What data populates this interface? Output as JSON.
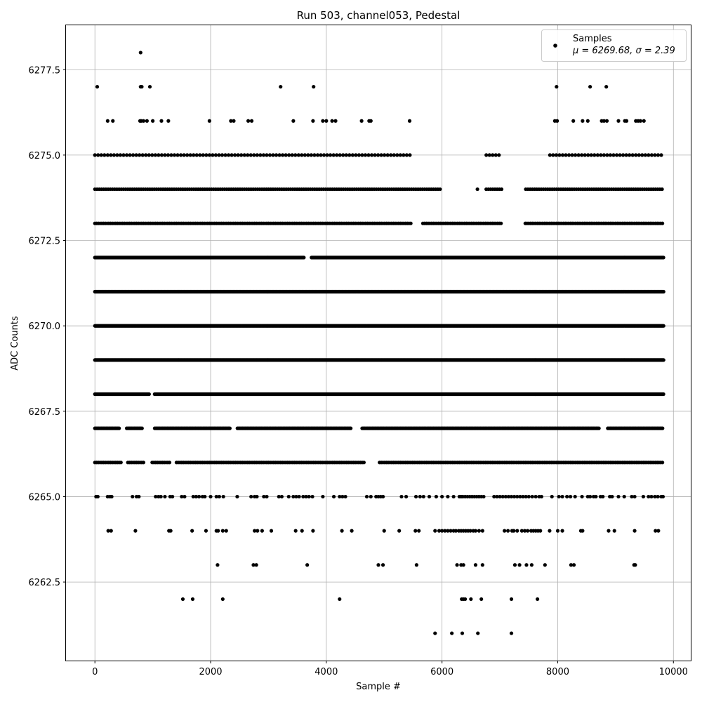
{
  "chart_data": {
    "type": "scatter",
    "title": "Run 503, channel053, Pedestal",
    "xlabel": "Sample #",
    "ylabel": "ADC Counts",
    "xlim": [
      -500,
      10300
    ],
    "ylim": [
      6260.2,
      6278.8
    ],
    "x_ticks": [
      0,
      2000,
      4000,
      6000,
      8000,
      10000
    ],
    "x_tick_labels": [
      "0",
      "2000",
      "4000",
      "6000",
      "8000",
      "10000"
    ],
    "y_ticks": [
      6262.5,
      6265.0,
      6267.5,
      6270.0,
      6272.5,
      6275.0,
      6277.5
    ],
    "y_tick_labels": [
      "6262.5",
      "6265.0",
      "6267.5",
      "6270.0",
      "6272.5",
      "6275.0",
      "6277.5"
    ],
    "grid": true,
    "legend": {
      "placement": "top-right",
      "entries": [
        "Samples",
        "μ = 6269.68, σ = 2.39"
      ]
    },
    "marker_color": "#000000",
    "series": [
      {
        "name": "Samples",
        "levels": [
          {
            "y": 6278,
            "x": [
              790
            ]
          },
          {
            "y": 6277,
            "x": [
              40,
              790,
              810,
              950,
              3210,
              3780,
              7980,
              8560,
              8840
            ]
          },
          {
            "y": 6276,
            "x": [
              220,
              310,
              780,
              800,
              840,
              900,
              1000,
              1150,
              1270,
              1980,
              2350,
              2400,
              2650,
              2710,
              3430,
              3770,
              3940,
              4000,
              4100,
              4160,
              4610,
              4740,
              4770,
              5440,
              7950,
              7990,
              8270,
              8430,
              8520,
              8760,
              8800,
              8850,
              9050,
              9160,
              9190,
              9350,
              9390,
              9430,
              9490
            ]
          },
          {
            "y": 6275,
            "lo": 0,
            "hi": 9830,
            "step": 55,
            "gaps": [
              [
                5480,
                6760
              ],
              [
                7000,
                7850
              ]
            ]
          },
          {
            "y": 6274,
            "lo": 0,
            "hi": 9830,
            "step": 38,
            "gaps": [
              [
                5980,
                6580
              ],
              [
                6620,
                6760
              ],
              [
                7060,
                7440
              ]
            ]
          },
          {
            "y": 6273,
            "lo": 0,
            "hi": 9830,
            "step": 30,
            "gaps": [
              [
                5480,
                5640
              ],
              [
                7050,
                7420
              ]
            ]
          },
          {
            "y": 6272,
            "lo": 0,
            "hi": 9830,
            "step": 12,
            "gaps": [
              [
                3620,
                3740
              ]
            ]
          },
          {
            "y": 6271,
            "lo": 0,
            "hi": 9830,
            "step": 10,
            "gaps": []
          },
          {
            "y": 6270,
            "lo": 0,
            "hi": 9830,
            "step": 10,
            "gaps": []
          },
          {
            "y": 6269,
            "lo": 0,
            "hi": 9830,
            "step": 10,
            "gaps": []
          },
          {
            "y": 6268,
            "lo": 0,
            "hi": 9830,
            "step": 12,
            "gaps": [
              [
                940,
                1030
              ]
            ]
          },
          {
            "y": 6267,
            "lo": 0,
            "hi": 9830,
            "step": 22,
            "gaps": [
              [
                440,
                540
              ],
              [
                820,
                1020
              ],
              [
                2350,
                2460
              ],
              [
                4430,
                4600
              ],
              [
                8720,
                8860
              ]
            ]
          },
          {
            "y": 6266,
            "lo": 0,
            "hi": 9830,
            "step": 30,
            "gaps": [
              [
                460,
                560
              ],
              [
                860,
                980
              ],
              [
                1310,
                1380
              ],
              [
                4660,
                4900
              ]
            ]
          },
          {
            "y": 6265,
            "x": [
              20,
              50,
              220,
              260,
              290,
              650,
              720,
              760,
              1050,
              1100,
              1140,
              1210,
              1300,
              1340,
              1500,
              1550,
              1700,
              1750,
              1800,
              1860,
              1900,
              2000,
              2100,
              2150,
              2220,
              2460,
              2700,
              2760,
              2800,
              2920,
              2970,
              3180,
              3230,
              3350,
              3430,
              3480,
              3530,
              3600,
              3650,
              3700,
              3760,
              3940,
              4130,
              4230,
              4280,
              4330,
              4700,
              4770,
              4860,
              4900,
              4940,
              4980,
              5300,
              5380,
              5550,
              5620,
              5680,
              5780,
              5900,
              6000,
              6100,
              6200,
              6300,
              6330,
              6360,
              6400,
              6440,
              6480,
              6520,
              6560,
              6600,
              6640,
              6680,
              6720,
              6900,
              6950,
              7000,
              7050,
              7100,
              7150,
              7200,
              7250,
              7300,
              7350,
              7400,
              7450,
              7500,
              7560,
              7620,
              7680,
              7720,
              7900,
              8020,
              8080,
              8160,
              8220,
              8300,
              8420,
              8520,
              8560,
              8620,
              8660,
              8740,
              8780,
              8900,
              8940,
              9050,
              9150,
              9280,
              9330,
              9480,
              9570,
              9620,
              9680,
              9730,
              9790,
              9820
            ]
          },
          {
            "y": 6264,
            "x": [
              230,
              280,
              700,
              1280,
              1310,
              1680,
              1920,
              2100,
              2130,
              2210,
              2270,
              2760,
              2810,
              2890,
              3050,
              3470,
              3580,
              3770,
              4270,
              4440,
              5000,
              5260,
              5540,
              5600,
              5880,
              5950,
              6000,
              6050,
              6100,
              6150,
              6200,
              6240,
              6290,
              6330,
              6370,
              6410,
              6450,
              6490,
              6540,
              6580,
              6640,
              6700,
              7080,
              7140,
              7210,
              7240,
              7300,
              7380,
              7430,
              7480,
              7540,
              7580,
              7620,
              7660,
              7700,
              7860,
              8000,
              8080,
              8400,
              8430,
              8880,
              8980,
              9330,
              9690,
              9740
            ]
          },
          {
            "y": 6263,
            "x": [
              2120,
              2740,
              2790,
              3670,
              4900,
              4980,
              5560,
              6260,
              6330,
              6370,
              6580,
              6700,
              7260,
              7340,
              7460,
              7550,
              7780,
              8230,
              8280,
              9320,
              9340
            ]
          },
          {
            "y": 6262,
            "x": [
              1520,
              1690,
              2210,
              4230,
              6340,
              6370,
              6400,
              6500,
              6680,
              7200,
              7650
            ]
          },
          {
            "y": 6261,
            "x": [
              5880,
              6170,
              6350,
              6620,
              7200
            ]
          }
        ]
      }
    ]
  }
}
